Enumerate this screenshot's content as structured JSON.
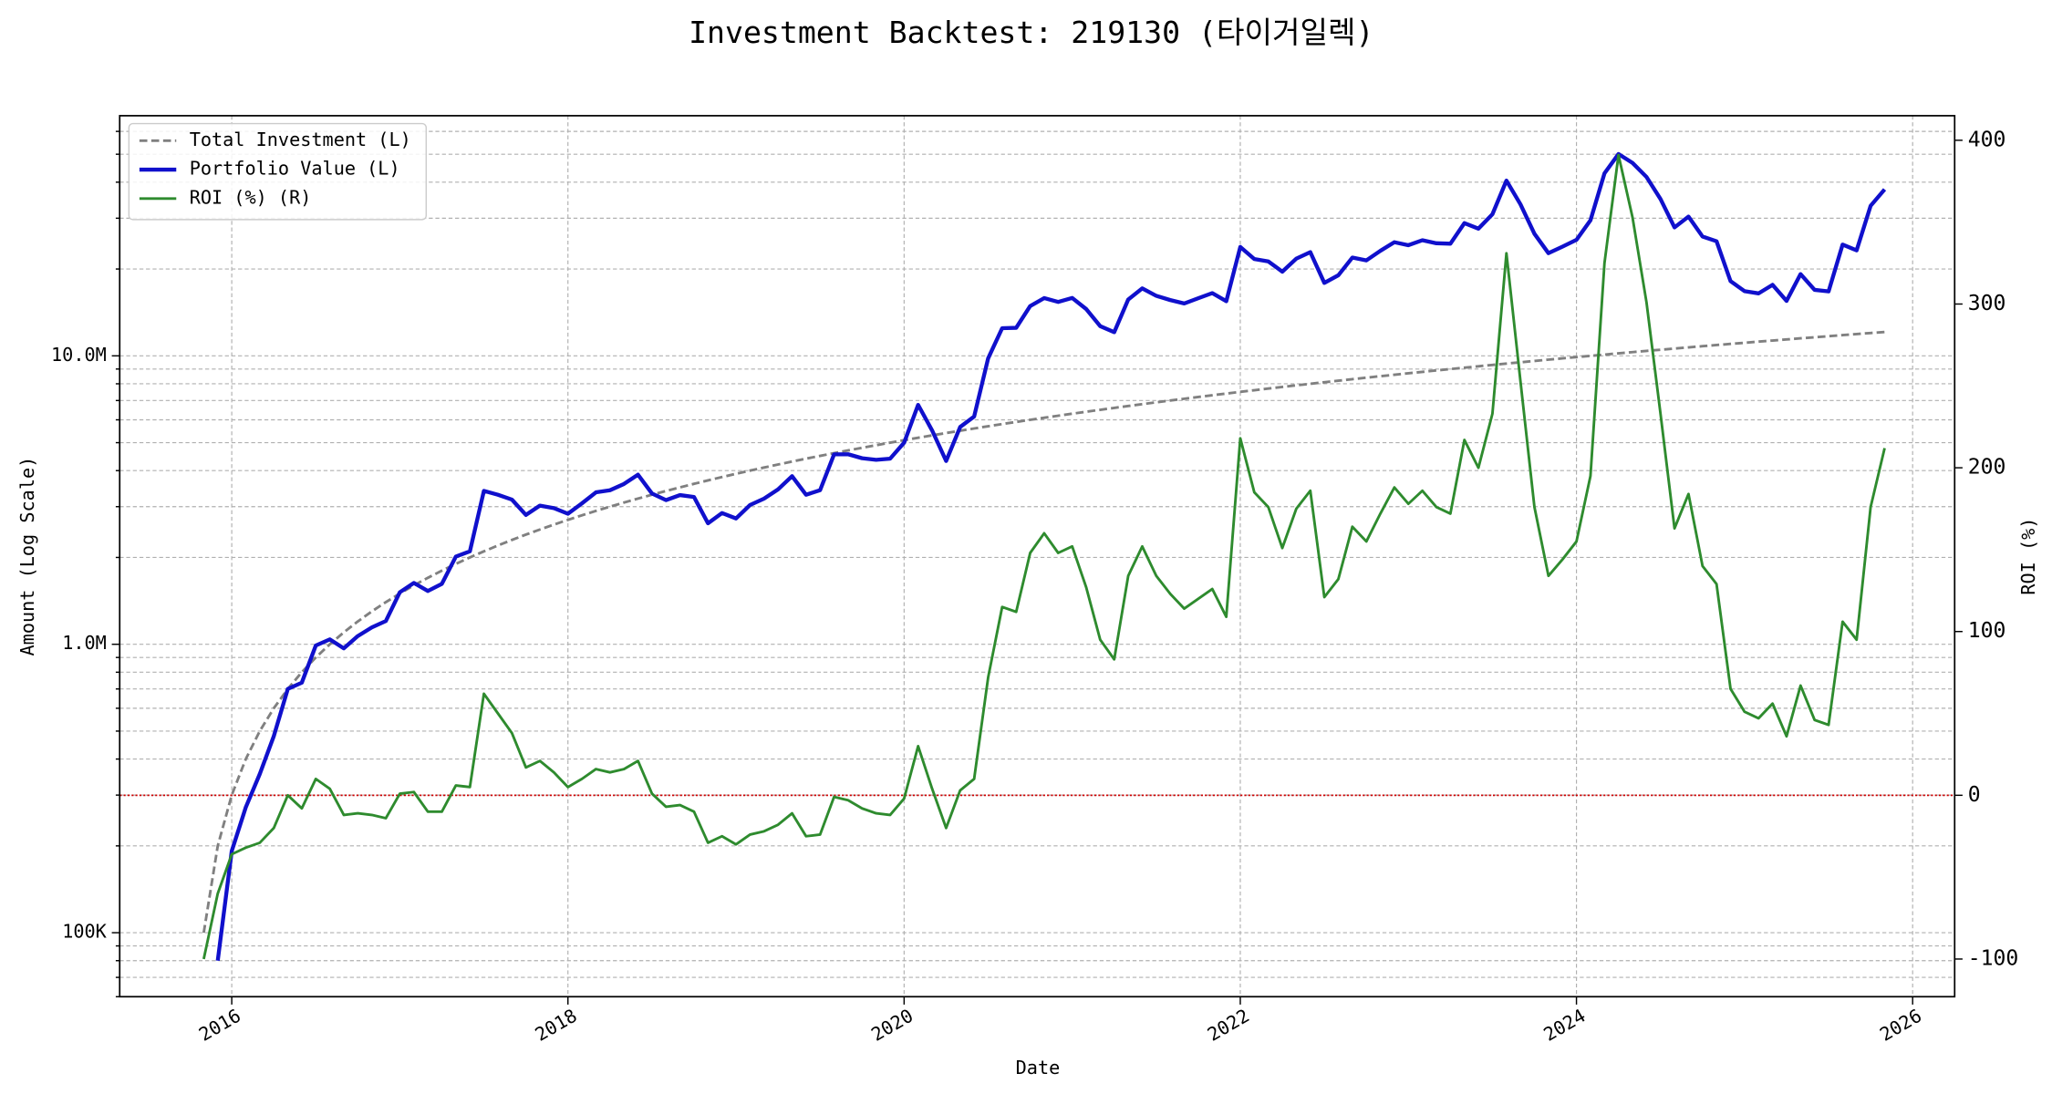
{
  "chart_data": {
    "type": "line",
    "title": "Investment Backtest: 219130 (타이거일렉)",
    "xlabel": "Date",
    "ylabel": "Amount (Log Scale)",
    "y2label": "ROI (%)",
    "ylog": true,
    "grid": true,
    "legend": "upper left",
    "ylabel_color": "#1010cc",
    "y2label_color": "#228b22",
    "hline": {
      "value": 0,
      "axis": "y2",
      "color": "#cc0000"
    },
    "xlim": [
      "2015-05",
      "2026-04"
    ],
    "xticks": [
      {
        "value": "2016-01",
        "label": "2016"
      },
      {
        "value": "2018-01",
        "label": "2018"
      },
      {
        "value": "2020-01",
        "label": "2020"
      },
      {
        "value": "2022-01",
        "label": "2022"
      },
      {
        "value": "2024-01",
        "label": "2024"
      },
      {
        "value": "2026-01",
        "label": "2026"
      }
    ],
    "ylim": [
      60000,
      68000000
    ],
    "yticks": [
      {
        "value": 100000,
        "label": "100K"
      },
      {
        "value": 1000000,
        "label": "1.0M"
      },
      {
        "value": 10000000,
        "label": "10.0M"
      }
    ],
    "yminorticks": [
      60000,
      70000,
      80000,
      90000,
      200000,
      300000,
      400000,
      500000,
      600000,
      700000,
      800000,
      900000,
      2000000,
      3000000,
      4000000,
      5000000,
      6000000,
      7000000,
      8000000,
      9000000,
      20000000,
      30000000,
      40000000,
      50000000,
      60000000
    ],
    "y2lim": [
      -123,
      415
    ],
    "y2ticks": [
      -100,
      0,
      100,
      200,
      300,
      400
    ],
    "x": [
      "2015-11",
      "2015-12",
      "2016-01",
      "2016-02",
      "2016-03",
      "2016-04",
      "2016-05",
      "2016-06",
      "2016-07",
      "2016-08",
      "2016-09",
      "2016-10",
      "2016-11",
      "2016-12",
      "2017-01",
      "2017-02",
      "2017-03",
      "2017-04",
      "2017-05",
      "2017-06",
      "2017-07",
      "2017-08",
      "2017-09",
      "2017-10",
      "2017-11",
      "2017-12",
      "2018-01",
      "2018-02",
      "2018-03",
      "2018-04",
      "2018-05",
      "2018-06",
      "2018-07",
      "2018-08",
      "2018-09",
      "2018-10",
      "2018-11",
      "2018-12",
      "2019-01",
      "2019-02",
      "2019-03",
      "2019-04",
      "2019-05",
      "2019-06",
      "2019-07",
      "2019-08",
      "2019-09",
      "2019-10",
      "2019-11",
      "2019-12",
      "2020-01",
      "2020-02",
      "2020-03",
      "2020-04",
      "2020-05",
      "2020-06",
      "2020-07",
      "2020-08",
      "2020-09",
      "2020-10",
      "2020-11",
      "2020-12",
      "2021-01",
      "2021-02",
      "2021-03",
      "2021-04",
      "2021-05",
      "2021-06",
      "2021-07",
      "2021-08",
      "2021-09",
      "2021-10",
      "2021-11",
      "2021-12",
      "2022-01",
      "2022-02",
      "2022-03",
      "2022-04",
      "2022-05",
      "2022-06",
      "2022-07",
      "2022-08",
      "2022-09",
      "2022-10",
      "2022-11",
      "2022-12",
      "2023-01",
      "2023-02",
      "2023-03",
      "2023-04",
      "2023-05",
      "2023-06",
      "2023-07",
      "2023-08",
      "2023-09",
      "2023-10",
      "2023-11",
      "2023-12",
      "2024-01",
      "2024-02",
      "2024-03",
      "2024-04",
      "2024-05",
      "2024-06",
      "2024-07",
      "2024-08",
      "2024-09",
      "2024-10",
      "2024-11",
      "2024-12",
      "2025-01",
      "2025-02",
      "2025-03",
      "2025-04",
      "2025-05",
      "2025-06",
      "2025-07",
      "2025-08",
      "2025-09",
      "2025-10",
      "2025-11"
    ],
    "series": [
      {
        "name": "Total Investment (L)",
        "color": "#808080",
        "axis": "y",
        "linestyle": "dashed",
        "width": 2,
        "values": [
          100000,
          200000,
          300000,
          400000,
          500000,
          600000,
          700000,
          800000,
          900000,
          1000000,
          1100000,
          1200000,
          1300000,
          1400000,
          1500000,
          1600000,
          1700000,
          1800000,
          1900000,
          2000000,
          2100000,
          2200000,
          2300000,
          2400000,
          2500000,
          2600000,
          2700000,
          2800000,
          2900000,
          3000000,
          3100000,
          3200000,
          3300000,
          3400000,
          3500000,
          3600000,
          3700000,
          3800000,
          3900000,
          4000000,
          4100000,
          4200000,
          4300000,
          4400000,
          4500000,
          4600000,
          4700000,
          4800000,
          4900000,
          5000000,
          5100000,
          5200000,
          5300000,
          5400000,
          5500000,
          5600000,
          5700000,
          5800000,
          5900000,
          6000000,
          6100000,
          6200000,
          6300000,
          6400000,
          6500000,
          6600000,
          6700000,
          6800000,
          6900000,
          7000000,
          7100000,
          7200000,
          7300000,
          7400000,
          7500000,
          7600000,
          7700000,
          7800000,
          7900000,
          8000000,
          8100000,
          8200000,
          8300000,
          8400000,
          8500000,
          8600000,
          8700000,
          8800000,
          8900000,
          9000000,
          9100000,
          9200000,
          9300000,
          9400000,
          9500000,
          9600000,
          9700000,
          9800000,
          9900000,
          10000000,
          10100000,
          10200000,
          10300000,
          10400000,
          10500000,
          10600000,
          10700000,
          10800000,
          10900000,
          11000000,
          11100000,
          11200000,
          11300000,
          11400000,
          11500000,
          11600000,
          11700000,
          11800000,
          11900000,
          12000000,
          12100000
        ]
      },
      {
        "name": "Portfolio Value (L)",
        "color": "#1010cc",
        "axis": "y",
        "linestyle": "solid",
        "width": 3,
        "values": [
          null,
          80000,
          192000,
          272000,
          355000,
          480000,
          700000,
          736000,
          990000,
          1040000,
          968000,
          1068000,
          1144000,
          1204000,
          1515000,
          1632000,
          1530000,
          1620000,
          2014000,
          2100000,
          3402000,
          3300000,
          3174000,
          2808000,
          3025000,
          2964000,
          2835000,
          3080000,
          3364000,
          3420000,
          3596000,
          3872000,
          3333000,
          3162000,
          3290000,
          3240000,
          2627000,
          2850000,
          2730000,
          3040000,
          3198000,
          3444000,
          3827000,
          3300000,
          3420000,
          4554000,
          4559000,
          4416000,
          4361000,
          4400000,
          4998000,
          6760000,
          5512000,
          4320000,
          5665000,
          6160000,
          9804000,
          12470000,
          12508000,
          14880000,
          15860000,
          15376000,
          15876000,
          14528000,
          12675000,
          12078000,
          15678000,
          17136000,
          16146000,
          15610000,
          15194000,
          15840000,
          16498000,
          15466000,
          23850000,
          21660000,
          21252000,
          19578000,
          21725000,
          22880000,
          17901000,
          19024000,
          21912000,
          21420000,
          23120000,
          24768000,
          24186000,
          25168000,
          24564000,
          24480000,
          28847000,
          27600000,
          30969000,
          40514000,
          33535000,
          26496000,
          22698000,
          23912000,
          25245000,
          29500000,
          42925000,
          50082000,
          46659000,
          41704000,
          34965000,
          27878000,
          30388000,
          25920000,
          24961000,
          18150000,
          16761000,
          16464000,
          17628000,
          15504000,
          19205000,
          16936000,
          16731000,
          24308000,
          23205000,
          33120000,
          37752000
        ]
      },
      {
        "name": "ROI (%) (R)",
        "color": "#2e8b2e",
        "axis": "y2",
        "linestyle": "solid",
        "width": 2,
        "values": [
          -100,
          -60,
          -36,
          -32,
          -29,
          -20,
          0,
          -8,
          10,
          4,
          -12,
          -11,
          -12,
          -14,
          1,
          2,
          -10,
          -10,
          6,
          5,
          62,
          50,
          38,
          17,
          21,
          14,
          5,
          10,
          16,
          14,
          16,
          21,
          1,
          -7,
          -6,
          -10,
          -29,
          -25,
          -30,
          -24,
          -22,
          -18,
          -11,
          -25,
          -24,
          -1,
          -3,
          -8,
          -11,
          -12,
          -2,
          30,
          4,
          -20,
          3,
          10,
          72,
          115,
          112,
          148,
          160,
          148,
          152,
          127,
          95,
          83,
          134,
          152,
          134,
          123,
          114,
          120,
          126,
          109,
          218,
          185,
          176,
          151,
          175,
          186,
          121,
          132,
          164,
          155,
          172,
          188,
          178,
          186,
          176,
          172,
          217,
          200,
          233,
          331,
          253,
          176,
          134,
          144,
          155,
          195,
          325,
          391,
          353,
          301,
          233,
          163,
          184,
          140,
          129,
          65,
          51,
          47,
          56,
          36,
          67,
          46,
          43,
          106,
          95,
          176,
          212
        ]
      }
    ]
  }
}
